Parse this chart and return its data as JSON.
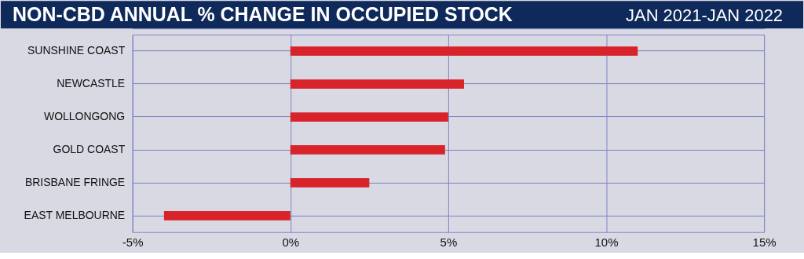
{
  "chart_data": {
    "type": "bar",
    "orientation": "horizontal",
    "title": "NON-CBD ANNUAL % CHANGE IN OCCUPIED STOCK",
    "subtitle": "JAN 2021-JAN 2022",
    "categories": [
      "SUNSHINE COAST",
      "NEWCASTLE",
      "WOLLONGONG",
      "GOLD COAST",
      "BRISBANE FRINGE",
      "EAST MELBOURNE"
    ],
    "values": [
      11.0,
      5.5,
      5.0,
      4.9,
      2.5,
      -4.0
    ],
    "color": "#d8232a",
    "xlim": [
      -5,
      15
    ],
    "xticks": [
      {
        "value": -5,
        "label": "-5%"
      },
      {
        "value": 0,
        "label": "0%"
      },
      {
        "value": 5,
        "label": "5%"
      },
      {
        "value": 10,
        "label": "10%"
      },
      {
        "value": 15,
        "label": "15%"
      }
    ],
    "grid": true
  }
}
